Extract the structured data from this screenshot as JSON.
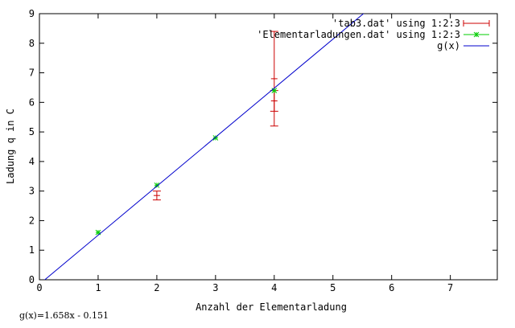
{
  "chart_data": {
    "type": "scatter",
    "xlabel": "Anzahl der Elementarladung",
    "ylabel": "Ladung q in C",
    "xlim": [
      0,
      7.8
    ],
    "ylim": [
      0,
      9
    ],
    "xticks": [
      0,
      1,
      2,
      3,
      4,
      5,
      6,
      7
    ],
    "yticks": [
      0,
      1,
      2,
      3,
      4,
      5,
      6,
      7,
      8,
      9
    ],
    "grid": false,
    "legend_position": "top-right",
    "series": [
      {
        "name": "'tab3.dat' using 1:2:3",
        "color": "#cc0000",
        "style": "errorbars",
        "points": [
          {
            "x": 2,
            "y": 2.85,
            "err": 0.15
          },
          {
            "x": 4,
            "y": 6.05,
            "err": 0.35
          },
          {
            "x": 4,
            "y": 6.8,
            "err": 1.6
          }
        ]
      },
      {
        "name": "'Elementarladungen.dat' using 1:2:3",
        "color": "#00cc00",
        "style": "points",
        "points": [
          {
            "x": 1,
            "y": 1.6
          },
          {
            "x": 2,
            "y": 3.2
          },
          {
            "x": 3,
            "y": 4.8
          },
          {
            "x": 4,
            "y": 6.4
          }
        ]
      },
      {
        "name": "g(x)",
        "color": "#0000cc",
        "style": "line",
        "slope": 1.658,
        "intercept": -0.151
      }
    ],
    "annotation": "g(x)=1.658x - 0.151"
  }
}
